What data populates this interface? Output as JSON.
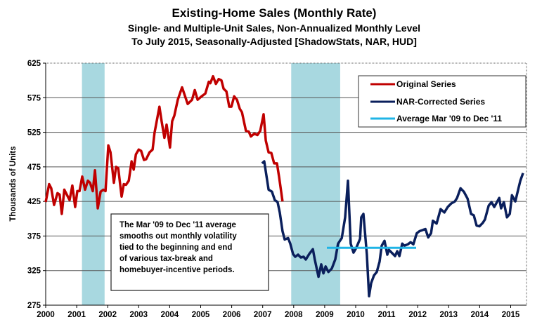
{
  "chart_data": {
    "type": "line",
    "title": "Existing-Home Sales (Monthly Rate)",
    "subtitle_lines": [
      "Single- and Multiple-Unit Sales, Non-Annualized Monthly Level",
      "To July 2015, Seasonally-Adjusted [ShadowStats, NAR, HUD]"
    ],
    "ylabel": "Thousands of Units",
    "xlabel": "",
    "ylim": [
      275,
      625
    ],
    "xlim": [
      2000,
      2015.6
    ],
    "yticks": [
      "625",
      "575",
      "525",
      "475",
      "425",
      "375",
      "325",
      "275"
    ],
    "xticks": [
      "2000",
      "2001",
      "2002",
      "2003",
      "2004",
      "2005",
      "2006",
      "2007",
      "2008",
      "2009",
      "2010",
      "2011",
      "2012",
      "2013",
      "2014",
      "2015"
    ],
    "grid": true,
    "legend_position": "top-right",
    "recessions": [
      [
        2001.17,
        2001.9
      ],
      [
        2007.92,
        2009.5
      ]
    ],
    "colors": {
      "original": "#c00000",
      "corrected": "#0a1f5c",
      "average": "#1fb4e6",
      "recession": "#a8d8e0"
    },
    "series": [
      {
        "name": "Original Series",
        "key": "original",
        "points": [
          [
            2000.0,
            424
          ],
          [
            2000.11,
            450
          ],
          [
            2000.18,
            444
          ],
          [
            2000.27,
            420
          ],
          [
            2000.38,
            437
          ],
          [
            2000.45,
            435
          ],
          [
            2000.52,
            407
          ],
          [
            2000.6,
            442
          ],
          [
            2000.77,
            427
          ],
          [
            2000.86,
            448
          ],
          [
            2000.95,
            417
          ],
          [
            2001.02,
            440
          ],
          [
            2001.09,
            440
          ],
          [
            2001.18,
            461
          ],
          [
            2001.27,
            442
          ],
          [
            2001.36,
            455
          ],
          [
            2001.43,
            452
          ],
          [
            2001.52,
            440
          ],
          [
            2001.59,
            470
          ],
          [
            2001.68,
            415
          ],
          [
            2001.77,
            439
          ],
          [
            2001.86,
            442
          ],
          [
            2001.93,
            440
          ],
          [
            2002.02,
            506
          ],
          [
            2002.09,
            496
          ],
          [
            2002.2,
            452
          ],
          [
            2002.27,
            475
          ],
          [
            2002.34,
            473
          ],
          [
            2002.45,
            432
          ],
          [
            2002.52,
            450
          ],
          [
            2002.59,
            449
          ],
          [
            2002.68,
            455
          ],
          [
            2002.77,
            483
          ],
          [
            2002.84,
            471
          ],
          [
            2002.91,
            493
          ],
          [
            2003.0,
            500
          ],
          [
            2003.08,
            498
          ],
          [
            2003.17,
            485
          ],
          [
            2003.24,
            486
          ],
          [
            2003.35,
            496
          ],
          [
            2003.45,
            500
          ],
          [
            2003.51,
            524
          ],
          [
            2003.67,
            562
          ],
          [
            2003.74,
            541
          ],
          [
            2003.83,
            517
          ],
          [
            2003.9,
            536
          ],
          [
            2004.01,
            503
          ],
          [
            2004.08,
            541
          ],
          [
            2004.15,
            549
          ],
          [
            2004.26,
            572
          ],
          [
            2004.4,
            590
          ],
          [
            2004.58,
            566
          ],
          [
            2004.72,
            572
          ],
          [
            2004.81,
            586
          ],
          [
            2004.9,
            572
          ],
          [
            2005.03,
            577
          ],
          [
            2005.15,
            581
          ],
          [
            2005.26,
            598
          ],
          [
            2005.31,
            596
          ],
          [
            2005.4,
            606
          ],
          [
            2005.49,
            595
          ],
          [
            2005.58,
            602
          ],
          [
            2005.67,
            600
          ],
          [
            2005.74,
            588
          ],
          [
            2005.83,
            584
          ],
          [
            2005.92,
            562
          ],
          [
            2005.99,
            562
          ],
          [
            2006.08,
            577
          ],
          [
            2006.17,
            572
          ],
          [
            2006.26,
            559
          ],
          [
            2006.33,
            554
          ],
          [
            2006.46,
            527
          ],
          [
            2006.55,
            526
          ],
          [
            2006.62,
            519
          ],
          [
            2006.73,
            523
          ],
          [
            2006.83,
            521
          ],
          [
            2006.92,
            527
          ],
          [
            2007.03,
            551
          ],
          [
            2007.1,
            513
          ],
          [
            2007.19,
            496
          ],
          [
            2007.28,
            495
          ],
          [
            2007.37,
            480
          ],
          [
            2007.46,
            480
          ],
          [
            2007.53,
            460
          ],
          [
            2007.64,
            425
          ]
        ]
      },
      {
        "name": "NAR-Corrected Series",
        "key": "corrected",
        "points": [
          [
            2006.98,
            480
          ],
          [
            2007.05,
            483
          ],
          [
            2007.19,
            442
          ],
          [
            2007.3,
            439
          ],
          [
            2007.39,
            427
          ],
          [
            2007.48,
            424
          ],
          [
            2007.55,
            409
          ],
          [
            2007.64,
            382
          ],
          [
            2007.71,
            370
          ],
          [
            2007.82,
            372
          ],
          [
            2007.89,
            364
          ],
          [
            2007.98,
            349
          ],
          [
            2008.05,
            345
          ],
          [
            2008.14,
            348
          ],
          [
            2008.23,
            344
          ],
          [
            2008.32,
            345
          ],
          [
            2008.39,
            341
          ],
          [
            2008.5,
            349
          ],
          [
            2008.62,
            356
          ],
          [
            2008.68,
            341
          ],
          [
            2008.8,
            316
          ],
          [
            2008.89,
            334
          ],
          [
            2008.96,
            321
          ],
          [
            2009.03,
            331
          ],
          [
            2009.12,
            323
          ],
          [
            2009.23,
            328
          ],
          [
            2009.34,
            341
          ],
          [
            2009.43,
            364
          ],
          [
            2009.55,
            372
          ],
          [
            2009.66,
            402
          ],
          [
            2009.75,
            455
          ],
          [
            2009.84,
            364
          ],
          [
            2009.93,
            351
          ],
          [
            2010.02,
            358
          ],
          [
            2010.14,
            371
          ],
          [
            2010.18,
            402
          ],
          [
            2010.25,
            407
          ],
          [
            2010.36,
            348
          ],
          [
            2010.43,
            288
          ],
          [
            2010.5,
            307
          ],
          [
            2010.59,
            318
          ],
          [
            2010.68,
            323
          ],
          [
            2010.77,
            338
          ],
          [
            2010.84,
            361
          ],
          [
            2010.93,
            368
          ],
          [
            2011.02,
            348
          ],
          [
            2011.07,
            355
          ],
          [
            2011.16,
            351
          ],
          [
            2011.27,
            346
          ],
          [
            2011.34,
            353
          ],
          [
            2011.41,
            346
          ],
          [
            2011.5,
            364
          ],
          [
            2011.57,
            361
          ],
          [
            2011.68,
            363
          ],
          [
            2011.77,
            366
          ],
          [
            2011.86,
            363
          ],
          [
            2011.97,
            379
          ],
          [
            2012.06,
            382
          ],
          [
            2012.18,
            384
          ],
          [
            2012.25,
            385
          ],
          [
            2012.34,
            373
          ],
          [
            2012.43,
            379
          ],
          [
            2012.49,
            397
          ],
          [
            2012.61,
            393
          ],
          [
            2012.74,
            414
          ],
          [
            2012.86,
            409
          ],
          [
            2012.97,
            417
          ],
          [
            2013.08,
            422
          ],
          [
            2013.2,
            425
          ],
          [
            2013.27,
            430
          ],
          [
            2013.38,
            444
          ],
          [
            2013.49,
            439
          ],
          [
            2013.61,
            429
          ],
          [
            2013.72,
            407
          ],
          [
            2013.81,
            405
          ],
          [
            2013.9,
            390
          ],
          [
            2013.99,
            389
          ],
          [
            2014.1,
            394
          ],
          [
            2014.17,
            399
          ],
          [
            2014.29,
            419
          ],
          [
            2014.38,
            424
          ],
          [
            2014.47,
            417
          ],
          [
            2014.63,
            430
          ],
          [
            2014.69,
            415
          ],
          [
            2014.78,
            424
          ],
          [
            2014.88,
            402
          ],
          [
            2014.97,
            407
          ],
          [
            2015.04,
            434
          ],
          [
            2015.15,
            425
          ],
          [
            2015.24,
            442
          ],
          [
            2015.31,
            455
          ],
          [
            2015.4,
            466
          ]
        ]
      },
      {
        "name": "Average Mar '09 to Dec '11",
        "key": "average",
        "points": [
          [
            2009.07,
            358
          ],
          [
            2011.95,
            358
          ]
        ]
      }
    ],
    "annotation": [
      "The Mar '09 to Dec '11 average",
      "smooths out monthly volatility",
      "tied to the beginning  and end",
      "of various tax-break and",
      "homebuyer-incentive periods."
    ]
  }
}
